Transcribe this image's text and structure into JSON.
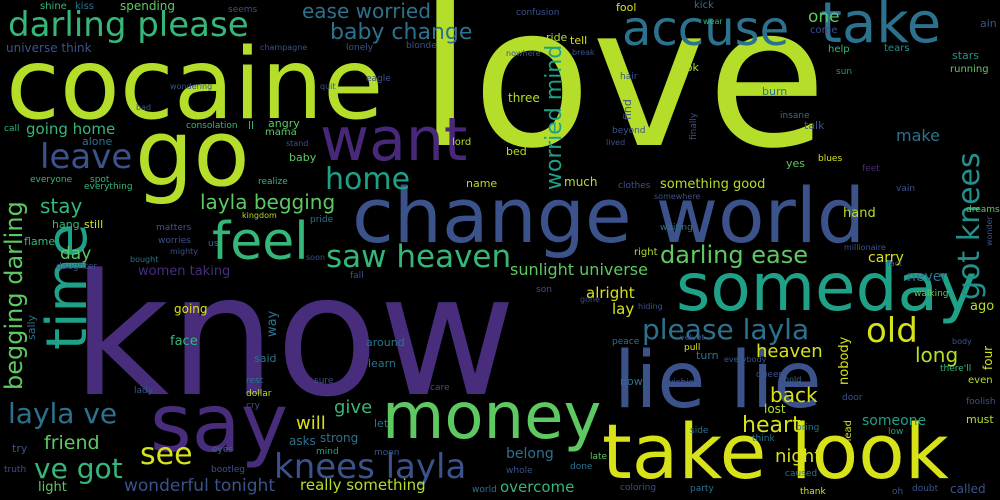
{
  "word_cloud": {
    "background": "#000000",
    "palette": {
      "lime": "#b5de2b",
      "yellow": "#d8e219",
      "green": "#5ec962",
      "teal": "#21918c",
      "blue": "#3b528b",
      "steel": "#2c728e",
      "purple": "#472d7b",
      "violet": "#482878",
      "aqua": "#1fa187",
      "mint": "#35b779"
    },
    "words": [
      "know",
      "love",
      "cocaine",
      "change world",
      "go",
      "accuse",
      "take",
      "someday",
      "lie lie",
      "take look",
      "money",
      "say",
      "time",
      "want",
      "feel",
      "darling please",
      "leave",
      "home",
      "saw heaven",
      "got knees",
      "old",
      "please layla",
      "knees layla",
      "ve got",
      "see",
      "ease worried",
      "baby change",
      "worried mind",
      "layla ve",
      "layla begging",
      "darling ease",
      "begging darling",
      "stay",
      "heart",
      "back",
      "heaven",
      "long",
      "night",
      "give",
      "will",
      "friend",
      "sunlight universe",
      "something good",
      "going home",
      "make",
      "one",
      "alright",
      "lay",
      "day",
      "women taking",
      "wonderful tonight",
      "really something",
      "overcome",
      "belong",
      "someone",
      "nobody",
      "lost",
      "never",
      "carry",
      "hand",
      "spending",
      "universe think",
      "fool",
      "tell",
      "ride",
      "shine",
      "kiss",
      "seems",
      "confusion",
      "kick",
      "wear",
      "ain",
      "come",
      "help",
      "tears",
      "stars",
      "running",
      "sun",
      "look",
      "burn",
      "insane",
      "talk",
      "yes",
      "blues",
      "feet",
      "vain",
      "dreams",
      "wonder",
      "millionaire",
      "fact",
      "walking",
      "ago",
      "body",
      "four",
      "even",
      "there'll",
      "foolish",
      "must",
      "low",
      "around",
      "called",
      "doubt",
      "oh",
      "thank",
      "caused",
      "think",
      "bring",
      "head",
      "queen",
      "hold",
      "door",
      "side",
      "pull",
      "peace",
      "late",
      "done",
      "coloring",
      "party",
      "whole",
      "world",
      "sure",
      "rest",
      "dollar",
      "cry",
      "said",
      "way",
      "face",
      "learn",
      "moon",
      "asks",
      "strong",
      "let",
      "mind",
      "bootleg",
      "eyes",
      "truth",
      "try",
      "light",
      "lady",
      "bought",
      "sally",
      "daughter",
      "flame",
      "hang",
      "still",
      "spot",
      "everything",
      "everyone",
      "call",
      "alone",
      "consolation",
      "ll",
      "angry",
      "mama",
      "stand",
      "baby",
      "realize",
      "kingdom",
      "pride",
      "us",
      "matters",
      "worries",
      "mighty",
      "soon",
      "son",
      "fall",
      "gone",
      "hiding",
      "right",
      "finally",
      "beyond",
      "lived",
      "three",
      "bed",
      "lord",
      "name",
      "much",
      "clothes",
      "somewhere",
      "waiting",
      "velvet",
      "everybody",
      "turn",
      "wishing",
      "now",
      "care",
      "going",
      "champagne",
      "lonely",
      "blonde",
      "eagle",
      "quit",
      "wondering",
      "nowhere",
      "break",
      "hair",
      "find",
      "bad",
      "hurt",
      "eyes wide"
    ]
  }
}
